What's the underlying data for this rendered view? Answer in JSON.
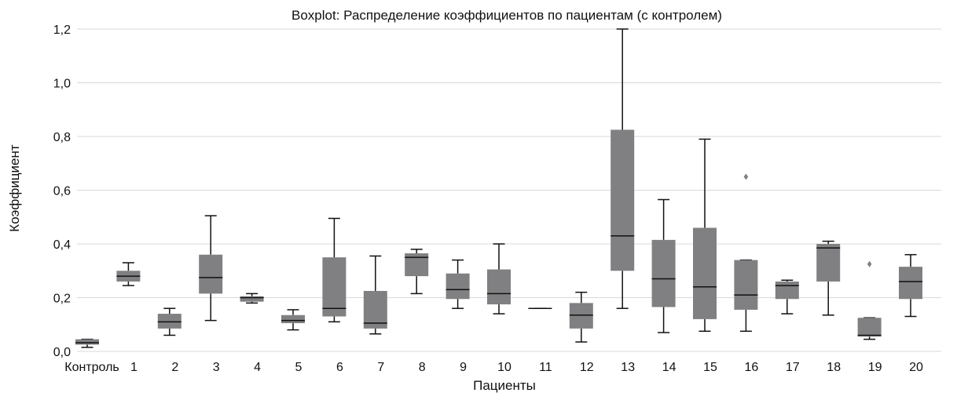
{
  "chart_data": {
    "type": "boxplot",
    "title": "Boxplot: Распределение коэффициентов по пациентам (с контролем)",
    "xlabel": "Пациенты",
    "ylabel": "Коэффициент",
    "ylim": [
      0.0,
      1.2
    ],
    "yticks": [
      "0,0",
      "0,2",
      "0,4",
      "0,6",
      "0,8",
      "1,0",
      "1,2"
    ],
    "grid": true,
    "box_color": "#808083",
    "categories": [
      "Контроль",
      "1",
      "2",
      "3",
      "4",
      "5",
      "6",
      "7",
      "8",
      "9",
      "10",
      "11",
      "12",
      "13",
      "14",
      "15",
      "16",
      "17",
      "18",
      "19",
      "20"
    ],
    "boxes": [
      {
        "category": "Контроль",
        "min": 0.015,
        "q1": 0.025,
        "median": 0.032,
        "q3": 0.045,
        "max": 0.045,
        "outliers": []
      },
      {
        "category": "1",
        "min": 0.245,
        "q1": 0.26,
        "median": 0.28,
        "q3": 0.3,
        "max": 0.33,
        "outliers": []
      },
      {
        "category": "2",
        "min": 0.06,
        "q1": 0.085,
        "median": 0.11,
        "q3": 0.14,
        "max": 0.16,
        "outliers": []
      },
      {
        "category": "3",
        "min": 0.115,
        "q1": 0.215,
        "median": 0.275,
        "q3": 0.36,
        "max": 0.505,
        "outliers": []
      },
      {
        "category": "4",
        "min": 0.18,
        "q1": 0.185,
        "median": 0.2,
        "q3": 0.205,
        "max": 0.215,
        "outliers": []
      },
      {
        "category": "5",
        "min": 0.08,
        "q1": 0.105,
        "median": 0.115,
        "q3": 0.135,
        "max": 0.155,
        "outliers": []
      },
      {
        "category": "6",
        "min": 0.11,
        "q1": 0.13,
        "median": 0.16,
        "q3": 0.35,
        "max": 0.495,
        "outliers": []
      },
      {
        "category": "7",
        "min": 0.065,
        "q1": 0.085,
        "median": 0.105,
        "q3": 0.225,
        "max": 0.355,
        "outliers": []
      },
      {
        "category": "8",
        "min": 0.215,
        "q1": 0.28,
        "median": 0.35,
        "q3": 0.365,
        "max": 0.38,
        "outliers": []
      },
      {
        "category": "9",
        "min": 0.16,
        "q1": 0.195,
        "median": 0.23,
        "q3": 0.29,
        "max": 0.34,
        "outliers": []
      },
      {
        "category": "10",
        "min": 0.14,
        "q1": 0.175,
        "median": 0.215,
        "q3": 0.305,
        "max": 0.4,
        "outliers": []
      },
      {
        "category": "11",
        "min": 0.16,
        "q1": 0.16,
        "median": 0.16,
        "q3": 0.16,
        "max": 0.16,
        "outliers": []
      },
      {
        "category": "12",
        "min": 0.035,
        "q1": 0.085,
        "median": 0.135,
        "q3": 0.18,
        "max": 0.22,
        "outliers": []
      },
      {
        "category": "13",
        "min": 0.16,
        "q1": 0.3,
        "median": 0.43,
        "q3": 0.825,
        "max": 1.2,
        "outliers": []
      },
      {
        "category": "14",
        "min": 0.07,
        "q1": 0.165,
        "median": 0.27,
        "q3": 0.415,
        "max": 0.565,
        "outliers": []
      },
      {
        "category": "15",
        "min": 0.075,
        "q1": 0.12,
        "median": 0.24,
        "q3": 0.46,
        "max": 0.79,
        "outliers": []
      },
      {
        "category": "16",
        "min": 0.075,
        "q1": 0.155,
        "median": 0.21,
        "q3": 0.34,
        "max": 0.34,
        "outliers": [
          0.65
        ]
      },
      {
        "category": "17",
        "min": 0.14,
        "q1": 0.195,
        "median": 0.245,
        "q3": 0.26,
        "max": 0.265,
        "outliers": []
      },
      {
        "category": "18",
        "min": 0.135,
        "q1": 0.26,
        "median": 0.385,
        "q3": 0.4,
        "max": 0.41,
        "outliers": []
      },
      {
        "category": "19",
        "min": 0.045,
        "q1": 0.055,
        "median": 0.06,
        "q3": 0.125,
        "max": 0.125,
        "outliers": [
          0.325
        ]
      },
      {
        "category": "20",
        "min": 0.13,
        "q1": 0.195,
        "median": 0.26,
        "q3": 0.315,
        "max": 0.36,
        "outliers": []
      }
    ]
  }
}
